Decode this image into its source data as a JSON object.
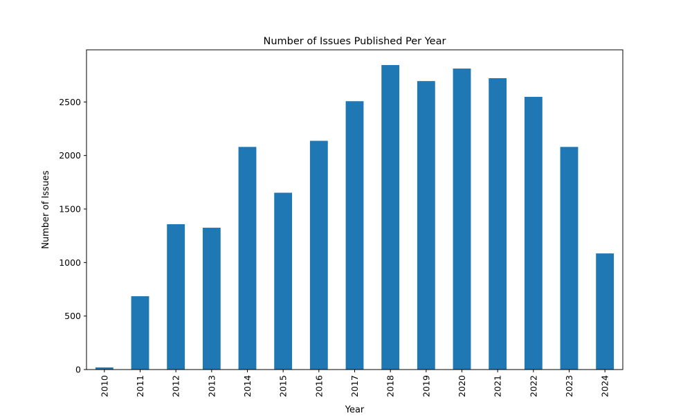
{
  "chart_data": {
    "type": "bar",
    "title": "Number of Issues Published Per Year",
    "xlabel": "Year",
    "ylabel": "Number of Issues",
    "categories": [
      "2010",
      "2011",
      "2012",
      "2013",
      "2014",
      "2015",
      "2016",
      "2017",
      "2018",
      "2019",
      "2020",
      "2021",
      "2022",
      "2023",
      "2024"
    ],
    "values": [
      20,
      685,
      1358,
      1325,
      2080,
      1652,
      2137,
      2507,
      2845,
      2695,
      2812,
      2722,
      2548,
      2080,
      1085
    ],
    "ylim": [
      0,
      2987
    ],
    "yticks": [
      0,
      500,
      1000,
      1500,
      2000,
      2500
    ],
    "bar_color": "#1f77b4",
    "grid": false,
    "legend": "none"
  }
}
